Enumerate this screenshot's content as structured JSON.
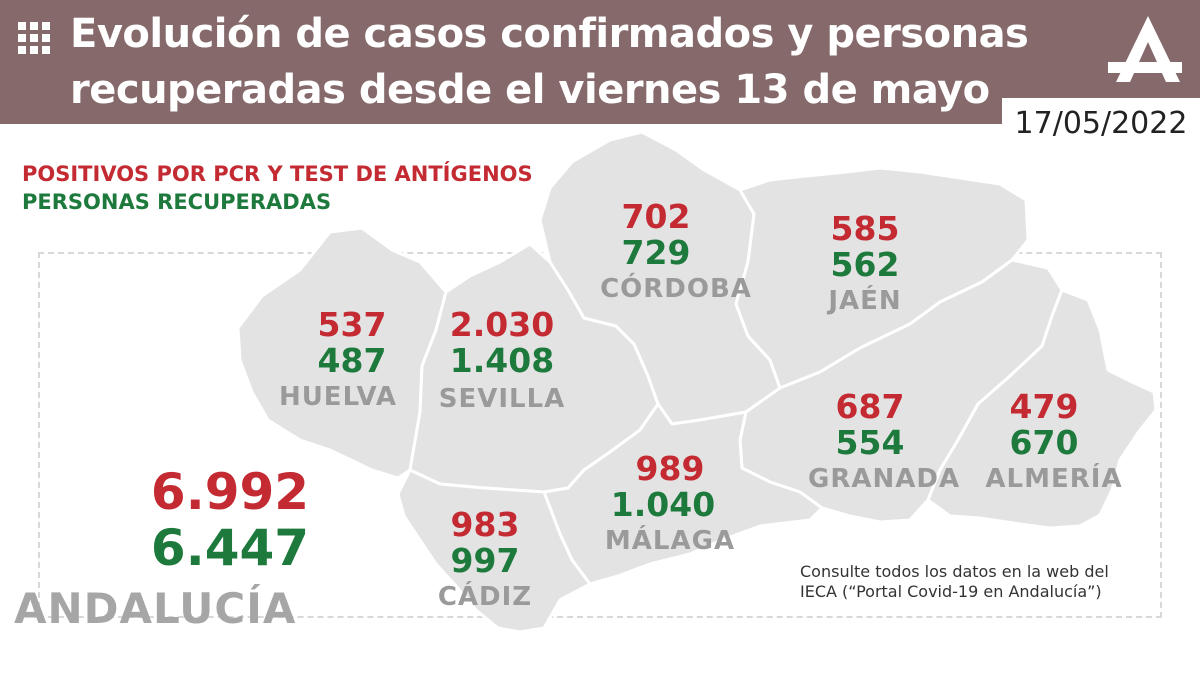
{
  "header": {
    "title": "Evolución de casos confirmados y personas recuperadas desde el viernes  13 de mayo",
    "date": "17/05/2022",
    "icon": "grid-icon",
    "logo": "andalucia-logo"
  },
  "legend": {
    "positives": "POSITIVOS POR PCR Y TEST DE ANTÍGENOS",
    "recovered": "PERSONAS RECUPERADAS"
  },
  "colors": {
    "header_bg": "#85696b",
    "positives": "#c42a32",
    "recovered": "#1d7a3c",
    "map_fill": "#e3e3e3",
    "label_gray": "#9a9a9a"
  },
  "provinces": {
    "huelva": {
      "name": "HUELVA",
      "positives": "537",
      "recovered": "487"
    },
    "sevilla": {
      "name": "SEVILLA",
      "positives": "2.030",
      "recovered": "1.408"
    },
    "cordoba": {
      "name": "CÓRDOBA",
      "positives": "702",
      "recovered": "729"
    },
    "jaen": {
      "name": "JAÉN",
      "positives": "585",
      "recovered": "562"
    },
    "granada": {
      "name": "GRANADA",
      "positives": "687",
      "recovered": "554"
    },
    "almeria": {
      "name": "ALMERÍA",
      "positives": "479",
      "recovered": "670"
    },
    "malaga": {
      "name": "MÁLAGA",
      "positives": "989",
      "recovered": "1.040"
    },
    "cadiz": {
      "name": "CÁDIZ",
      "positives": "983",
      "recovered": "997"
    }
  },
  "region": {
    "name": "ANDALUCÍA",
    "positives": "6.992",
    "recovered": "6.447"
  },
  "note": "Consulte todos los datos en la web del IECA (“Portal Covid-19 en Andalucía”)"
}
